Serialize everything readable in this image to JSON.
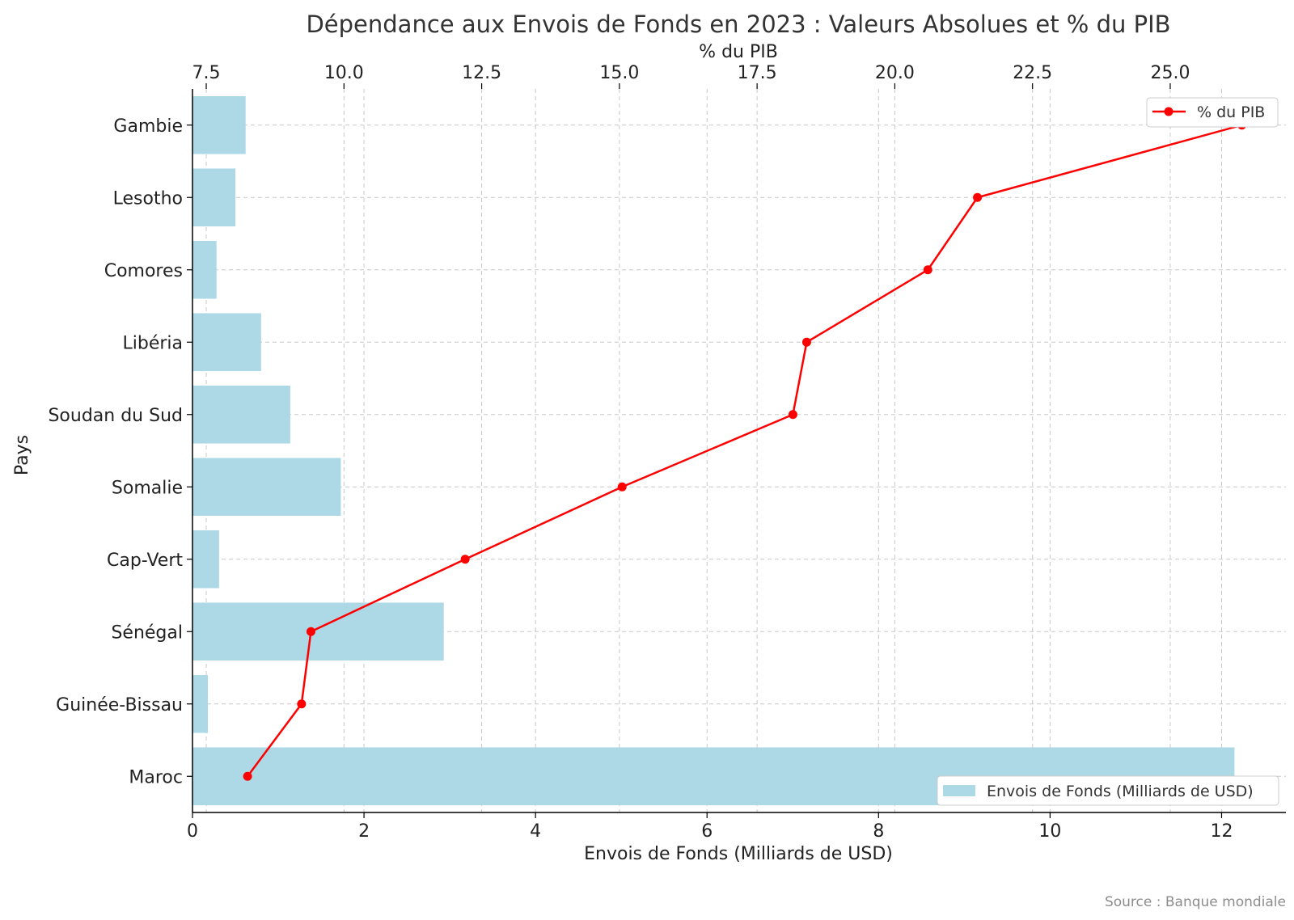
{
  "chart_data": {
    "type": "bar",
    "orientation": "horizontal",
    "title": "Dépendance aux Envois de Fonds en 2023 : Valeurs Absolues et % du PIB",
    "categories": [
      "Gambie",
      "Lesotho",
      "Comores",
      "Libéria",
      "Soudan du Sud",
      "Somalie",
      "Cap-Vert",
      "Sénégal",
      "Guinée-Bissau",
      "Maroc"
    ],
    "ylabel": "Pays",
    "bar_series": {
      "name": "Envois de Fonds (Milliards de USD)",
      "values": [
        0.62,
        0.5,
        0.28,
        0.8,
        1.14,
        1.73,
        0.31,
        2.93,
        0.18,
        12.15
      ],
      "color": "#add8e6"
    },
    "line_series": {
      "name": "% du PIB",
      "values": [
        26.3,
        21.5,
        20.6,
        18.4,
        18.15,
        15.05,
        12.2,
        9.4,
        9.23,
        8.25
      ],
      "color": "#ff0000"
    },
    "x_bottom": {
      "label": "Envois de Fonds (Milliards de USD)",
      "ticks": [
        "0",
        "2",
        "4",
        "6",
        "8",
        "10",
        "12"
      ],
      "lim": [
        0,
        12.75
      ]
    },
    "x_top": {
      "label": "% du PIB",
      "ticks": [
        "7.5",
        "10.0",
        "12.5",
        "15.0",
        "17.5",
        "20.0",
        "22.5",
        "25.0"
      ],
      "lim": [
        7.25,
        27.1
      ]
    },
    "grid": true,
    "legend": [
      {
        "position": "top-right",
        "label": "% du PIB"
      },
      {
        "position": "bottom-right",
        "label": "Envois de Fonds (Milliards de USD)"
      }
    ]
  },
  "source_note": "Source : Banque mondiale"
}
